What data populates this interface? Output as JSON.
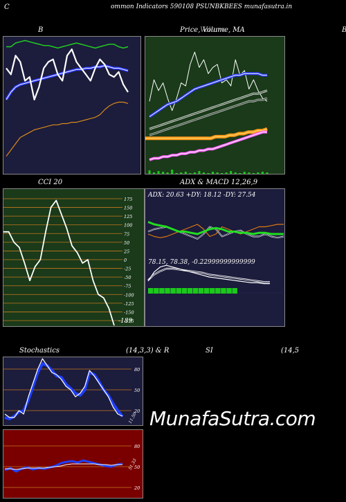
{
  "header": {
    "left": "C",
    "title": "ommon  Indicators 590108  PSUNBKBEES munafasutra.in"
  },
  "panels": {
    "bollinger": {
      "title": "B"
    },
    "price": {
      "title": "Price,  Volume,  MA",
      "title_overlay": "Volume"
    },
    "cci": {
      "title": "CCI 20",
      "ticks": [
        "175",
        "150",
        "125",
        "100",
        "75",
        "50",
        "25",
        "0",
        "-25",
        "-50",
        "-75",
        "-100",
        "-125",
        "-150",
        "-175"
      ],
      "last_value": "-189"
    },
    "adx": {
      "title": "ADX  & MACD 12,26,9",
      "readout": "ADX: 20.63  +DY: 18.12  -DY: 27.54"
    },
    "macd": {
      "readout": "78.15,  78.38,  -0.22999999999999"
    },
    "stoch": {
      "title_left": "Stochastics",
      "title_right": "(14,3,3) & R",
      "ticks": [
        "80",
        "50",
        "20"
      ],
      "last_value": "11.50"
    },
    "rsi": {
      "title_left": "SI",
      "title_right": "(14,5",
      "ticks": [
        "80",
        "50",
        "20"
      ],
      "last_value": "51.33"
    },
    "right_edge_label": "B"
  },
  "watermark": "MunafaSutra.com",
  "colors": {
    "panel_navy": "#1c1c3c",
    "panel_green": "#1a3a1a",
    "panel_dark_red": "#7a0000",
    "grid_orange": "#c8781e",
    "bb_green": "#22cc22",
    "bb_blue": "#2a3aff",
    "bb_orange": "#d88a1c",
    "price_white": "#ffffff",
    "volume_green": "#1cc81c",
    "ma_orange": "#ff9a1a",
    "ma_pink": "#ff60ff",
    "adx_green": "#22dd22",
    "di_orange": "#dd7a10",
    "stoch_blue": "#1f3fff"
  },
  "chart_data": [
    {
      "type": "line",
      "title": "B",
      "series": [
        {
          "values": [
            72,
            72,
            75,
            76,
            77,
            76,
            75,
            74,
            73,
            73,
            72,
            71,
            72,
            73,
            74,
            75,
            74,
            73,
            72,
            71,
            72,
            73,
            74,
            74,
            72,
            71,
            72
          ]
        },
        {
          "values": [
            30,
            36,
            40,
            42,
            43,
            44,
            45,
            46,
            47,
            48,
            49,
            50,
            51,
            52,
            53,
            54,
            54,
            55,
            55,
            56,
            56,
            57,
            56,
            55,
            55,
            54,
            53
          ]
        },
        {
          "values": [
            -15,
            -10,
            -5,
            0,
            2,
            4,
            6,
            7,
            8,
            9,
            10,
            10,
            11,
            11,
            12,
            12,
            13,
            14,
            15,
            16,
            18,
            22,
            25,
            27,
            28,
            28,
            27
          ]
        },
        {
          "values": [
            55,
            50,
            65,
            60,
            45,
            48,
            30,
            40,
            55,
            60,
            62,
            50,
            45,
            65,
            70,
            60,
            55,
            50,
            45,
            55,
            62,
            58,
            50,
            48,
            52,
            42,
            36
          ]
        }
      ]
    },
    {
      "type": "line",
      "title": "Price,  Volume,  MA",
      "series": [
        {
          "values": [
            48,
            62,
            55,
            60,
            50,
            42,
            50,
            60,
            58,
            72,
            80,
            70,
            75,
            66,
            70,
            72,
            60,
            62,
            58,
            75,
            65,
            68,
            56,
            62,
            55,
            50,
            48
          ]
        },
        {
          "values": [
            38,
            40,
            42,
            44,
            46,
            47,
            48,
            50,
            52,
            54,
            56,
            57,
            58,
            59,
            60,
            61,
            62,
            63,
            64,
            65,
            65,
            66,
            66,
            66,
            66,
            65,
            65
          ]
        },
        {
          "values": [
            30,
            31,
            32,
            33,
            34,
            35,
            36,
            37,
            38,
            39,
            40,
            41,
            42,
            43,
            44,
            45,
            46,
            47,
            48,
            49,
            50,
            51,
            52,
            53,
            53,
            54,
            55
          ]
        },
        {
          "values": [
            26,
            27,
            28,
            29,
            30,
            31,
            32,
            33,
            34,
            35,
            36,
            37,
            38,
            39,
            40,
            41,
            42,
            43,
            44,
            45,
            46,
            47,
            48,
            48,
            49,
            49,
            50
          ]
        },
        {
          "values": [
            24,
            24,
            24,
            24,
            24,
            24,
            24,
            24,
            24,
            24,
            24,
            24,
            24,
            24,
            24,
            25,
            25,
            25,
            26,
            26,
            27,
            27,
            28,
            28,
            29,
            29,
            30
          ]
        },
        {
          "values": [
            10,
            11,
            11,
            12,
            12,
            13,
            13,
            14,
            14,
            15,
            15,
            16,
            16,
            17,
            17,
            18,
            19,
            20,
            21,
            22,
            23,
            24,
            25,
            26,
            27,
            28,
            28
          ]
        }
      ],
      "volume": [
        5,
        2,
        4,
        3,
        2,
        6,
        1,
        2,
        3,
        1,
        2,
        4,
        2,
        1,
        3,
        2,
        1,
        2,
        4,
        2,
        1,
        3,
        2,
        1,
        2,
        3,
        2
      ]
    },
    {
      "type": "line",
      "title": "CCI 20",
      "ylim": [
        -175,
        175
      ],
      "series": [
        {
          "values": [
            80,
            80,
            50,
            35,
            -10,
            -60,
            -20,
            0,
            80,
            150,
            170,
            130,
            90,
            40,
            20,
            -10,
            0,
            -60,
            -100,
            -110,
            -140,
            -189
          ]
        }
      ]
    },
    {
      "type": "line",
      "title": "ADX  & MACD 12,26,9",
      "series": [
        {
          "values": [
            30,
            28,
            27,
            26,
            24,
            22,
            22,
            21,
            20,
            22,
            24,
            25,
            24,
            22,
            22,
            21,
            21,
            20,
            21,
            21,
            20,
            20,
            20
          ]
        },
        {
          "values": [
            22,
            24,
            25,
            26,
            24,
            22,
            20,
            18,
            16,
            20,
            26,
            24,
            18,
            20,
            22,
            23,
            20,
            18,
            18,
            20,
            18,
            17,
            18
          ]
        },
        {
          "values": [
            20,
            18,
            17,
            18,
            20,
            22,
            24,
            26,
            28,
            24,
            18,
            20,
            26,
            24,
            22,
            20,
            22,
            24,
            26,
            26,
            27,
            28,
            28
          ]
        }
      ],
      "macd": [
        78.5,
        79.6,
        80.2,
        80.4,
        80.2,
        80.0,
        79.8,
        79.6,
        79.4,
        79.2,
        79.0,
        78.9,
        78.8,
        78.7,
        78.6,
        78.5,
        78.4,
        78.3,
        78.3,
        78.2,
        78.2
      ],
      "signal": [
        78.6,
        79.3,
        79.7,
        80.0,
        80.0,
        79.9,
        79.8,
        79.7,
        79.6,
        79.5,
        79.3,
        79.2,
        79.1,
        79.0,
        78.9,
        78.8,
        78.7,
        78.6,
        78.5,
        78.4,
        78.4
      ],
      "hist": [
        1,
        1,
        1,
        1,
        1,
        1,
        1,
        1,
        1,
        1,
        1,
        1,
        1,
        1,
        1,
        1,
        0,
        0,
        0,
        0,
        0
      ]
    },
    {
      "type": "line",
      "title": "Stochastics",
      "ylim": [
        0,
        100
      ],
      "series": [
        {
          "values": [
            15,
            10,
            10,
            20,
            15,
            40,
            60,
            80,
            95,
            85,
            75,
            72,
            65,
            55,
            50,
            40,
            45,
            55,
            78,
            70,
            60,
            50,
            40,
            25,
            15,
            12
          ]
        },
        {
          "values": [
            10,
            8,
            12,
            18,
            20,
            35,
            55,
            75,
            88,
            85,
            78,
            70,
            68,
            58,
            52,
            45,
            42,
            50,
            75,
            72,
            62,
            50,
            42,
            30,
            20,
            11.5
          ]
        }
      ]
    },
    {
      "type": "line",
      "title": "SI",
      "ylim": [
        0,
        100
      ],
      "series": [
        {
          "values": [
            42,
            45,
            40,
            44,
            46,
            43,
            45,
            44,
            46,
            48,
            52,
            54,
            55,
            53,
            56,
            54,
            52,
            50,
            48,
            47,
            50,
            51.33
          ]
        },
        {
          "values": [
            44,
            44,
            43,
            44,
            45,
            45,
            45,
            45,
            46,
            47,
            48,
            50,
            51,
            51,
            51,
            51,
            51,
            50,
            50,
            49,
            50,
            50
          ]
        }
      ]
    }
  ]
}
